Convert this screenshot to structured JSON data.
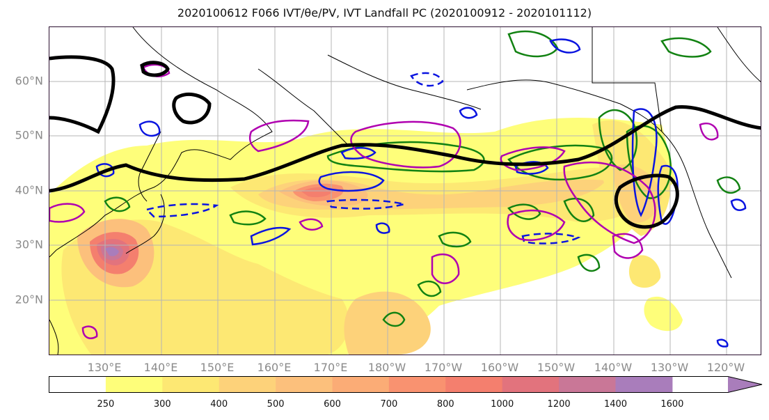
{
  "title": "2020100612 F066 IVT/θe/PV, IVT Landfall PC (2020100912 - 2020101112)",
  "lat_labels": [
    "60°N",
    "50°N",
    "40°N",
    "30°N",
    "20°N"
  ],
  "lon_labels": [
    "130°E",
    "140°E",
    "150°E",
    "160°E",
    "170°E",
    "180°W",
    "170°W",
    "160°W",
    "150°W",
    "140°W",
    "130°W",
    "120°W"
  ],
  "colorbar": {
    "levels": [
      "250",
      "300",
      "400",
      "500",
      "600",
      "700",
      "800",
      "1000",
      "1200",
      "1400",
      "1600"
    ],
    "colors": [
      "#ffffff",
      "#fefe7a",
      "#fde873",
      "#fdd27a",
      "#fcc07c",
      "#fbac76",
      "#f99270",
      "#f47f6e",
      "#e2737d",
      "#c97797",
      "#a97dbb",
      "#a97dbb"
    ]
  },
  "colors": {
    "positive_pv": "#b000b0",
    "negative_pv": "#0a14e0",
    "theta_e": "#128212",
    "ivt_pc": "#000000",
    "grid": "#b5b5b5",
    "coast": "#000000"
  }
}
